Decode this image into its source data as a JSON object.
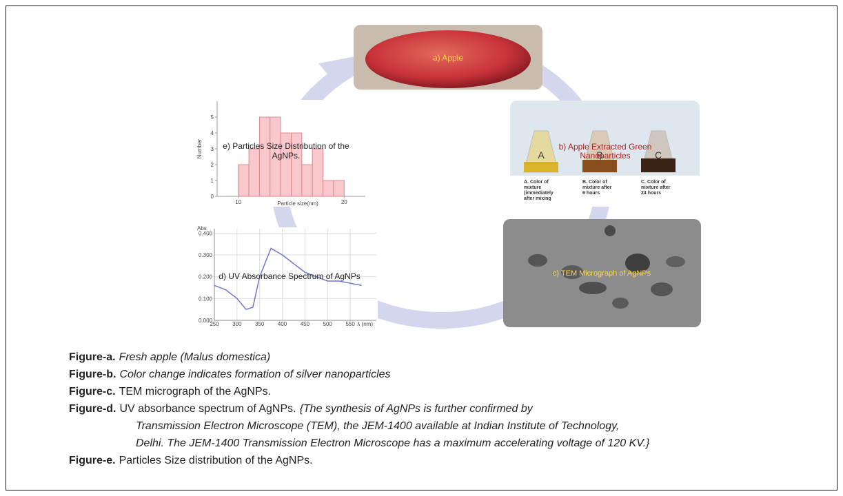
{
  "panels": {
    "a": {
      "label": "a) Apple"
    },
    "b": {
      "label": [
        "b) Apple Extracted Green",
        "Nanoparticles"
      ],
      "flasks": [
        "A",
        "B",
        "C"
      ],
      "flask_notes": [
        [
          "A. Color of",
          "mixture",
          "(immediately",
          "after mixing"
        ],
        [
          "B. Color of",
          "mixture after",
          "6 hours"
        ],
        [
          "C. Color of",
          "mixture after",
          "24 hours"
        ]
      ]
    },
    "c": {
      "label": "c) TEM Micrograph of AgNPs"
    },
    "d": {
      "label": "d) UV Absorbance Spectrum of AgNPs",
      "y_title": "Abs",
      "x_title": "λ (nm)",
      "x": [
        250,
        275,
        300,
        320,
        335,
        350,
        375,
        400,
        425,
        450,
        475,
        500,
        525,
        550,
        575
      ],
      "y": [
        0.16,
        0.14,
        0.1,
        0.05,
        0.06,
        0.2,
        0.33,
        0.3,
        0.26,
        0.22,
        0.2,
        0.18,
        0.18,
        0.17,
        0.16
      ],
      "xlim": [
        250,
        600
      ],
      "ylim": [
        0,
        0.42
      ],
      "xticks": [
        250,
        300,
        350,
        400,
        450,
        500,
        550
      ],
      "yticks": [
        {
          "value": 0,
          "label": "0.000"
        },
        {
          "value": 0.1,
          "label": "0.100"
        },
        {
          "value": 0.2,
          "label": "0.200"
        },
        {
          "value": 0.3,
          "label": "0.300"
        },
        {
          "value": 0.4,
          "label": "0.400"
        }
      ],
      "color": "#6f78c8"
    },
    "e": {
      "label": [
        "e) Particles Size Distribution of the",
        "AgNPs."
      ],
      "y_title": "Number",
      "x_title": "Particle size(nm)",
      "bins": [
        10,
        11,
        12,
        13,
        14,
        15,
        16,
        17,
        18,
        19,
        20
      ],
      "counts": [
        2,
        3,
        5,
        5,
        4,
        4,
        2,
        3,
        1,
        1
      ],
      "xlim": [
        8,
        22
      ],
      "ylim": [
        0,
        6
      ],
      "xticks": [
        10,
        20
      ],
      "yticks": [
        0,
        1,
        2,
        3,
        4,
        5
      ],
      "color": "#f8c8cc"
    }
  },
  "captions": [
    {
      "label": "Figure-a.",
      "text": "Fresh apple (Malus domestica)",
      "italic": true
    },
    {
      "label": "Figure-b.",
      "text": "Color change indicates formation of silver nanoparticles",
      "italic": true
    },
    {
      "label": "Figure-c.",
      "text": "TEM micrograph of the AgNPs.",
      "italic": false
    },
    {
      "label": "Figure-d.",
      "text": "UV absorbance spectrum of AgNPs.",
      "italic": false,
      "note": [
        "{The synthesis of AgNPs is further confirmed by",
        "Transmission Electron Microscope (TEM), the JEM-1400 available at Indian Institute of Technology,",
        "Delhi. The JEM-1400 Transmission Electron Microscope has a maximum accelerating voltage of 120 KV.}"
      ]
    },
    {
      "label": "Figure-e.",
      "text": "Particles Size distribution of the AgNPs.",
      "italic": false
    }
  ]
}
